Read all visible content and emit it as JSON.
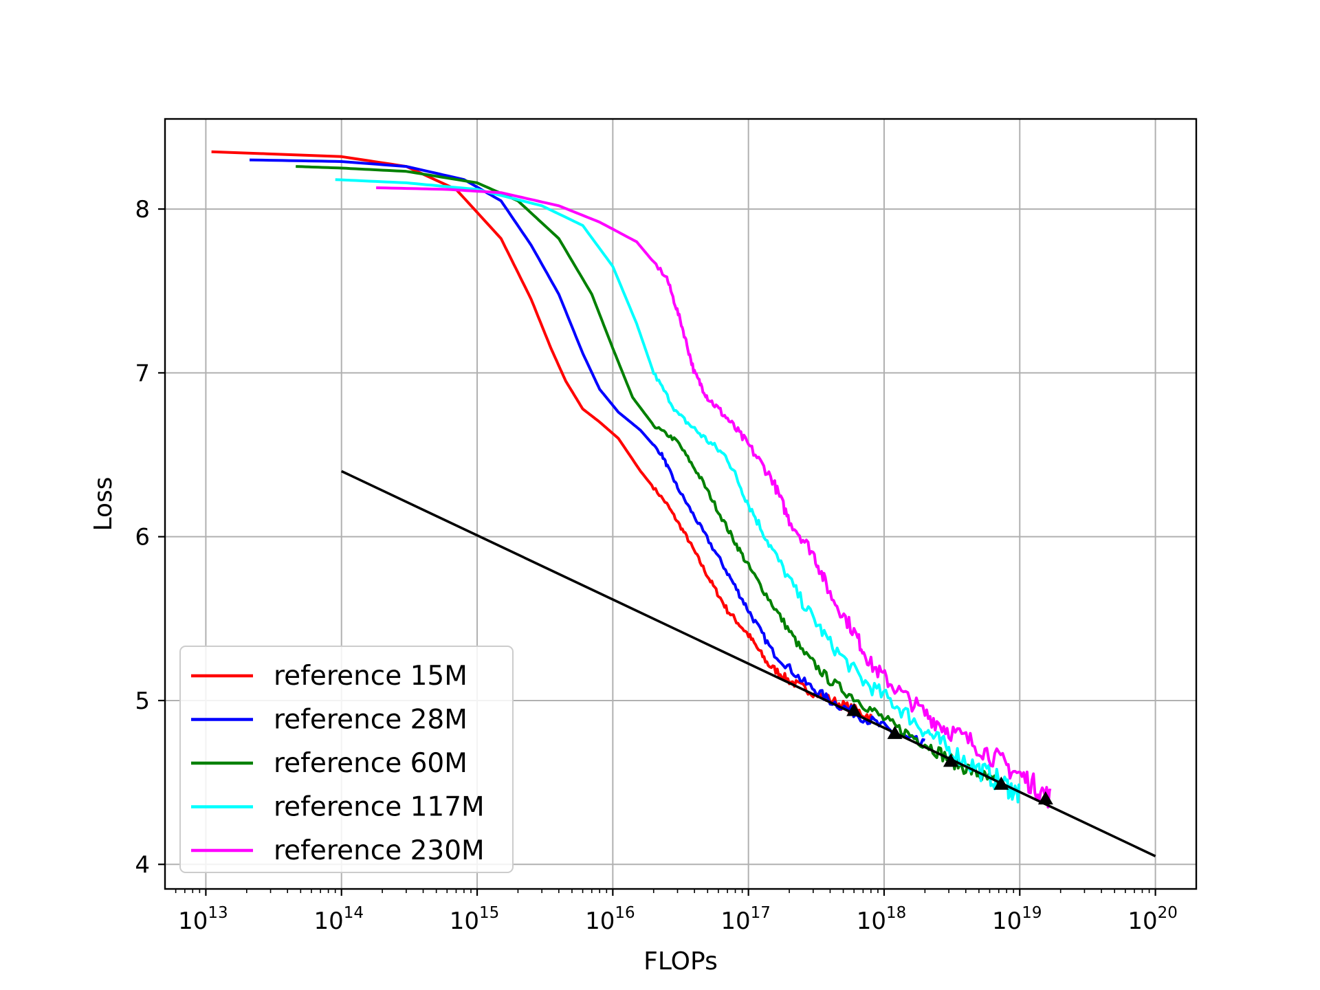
{
  "chart_data": {
    "type": "line",
    "title": "",
    "xlabel": "FLOPs",
    "ylabel": "Loss",
    "x_scale": "log",
    "xlim": [
      5000000000000.0,
      2e+20
    ],
    "ylim": [
      3.85,
      8.55
    ],
    "x_ticks": [
      {
        "value": 10000000000000.0,
        "base": "10",
        "exp": "13"
      },
      {
        "value": 100000000000000.0,
        "base": "10",
        "exp": "14"
      },
      {
        "value": 1000000000000000.0,
        "base": "10",
        "exp": "15"
      },
      {
        "value": 1e+16,
        "base": "10",
        "exp": "16"
      },
      {
        "value": 1e+17,
        "base": "10",
        "exp": "17"
      },
      {
        "value": 1e+18,
        "base": "10",
        "exp": "18"
      },
      {
        "value": 1e+19,
        "base": "10",
        "exp": "19"
      },
      {
        "value": 1e+20,
        "base": "10",
        "exp": "20"
      }
    ],
    "y_ticks": [
      {
        "value": 4,
        "label": "4"
      },
      {
        "value": 5,
        "label": "5"
      },
      {
        "value": 6,
        "label": "6"
      },
      {
        "value": 7,
        "label": "7"
      },
      {
        "value": 8,
        "label": "8"
      }
    ],
    "grid": true,
    "legend_position": "lower-left",
    "series": [
      {
        "name": "reference 15M",
        "color": "#ff0000",
        "points": [
          [
            11000000000000.0,
            8.35
          ],
          [
            100000000000000.0,
            8.32
          ],
          [
            300000000000000.0,
            8.26
          ],
          [
            700000000000000.0,
            8.12
          ],
          [
            1500000000000000.0,
            7.82
          ],
          [
            2500000000000000.0,
            7.45
          ],
          [
            3500000000000000.0,
            7.15
          ],
          [
            4500000000000000.0,
            6.95
          ],
          [
            6000000000000000.0,
            6.78
          ],
          [
            8000000000000000.0,
            6.7
          ],
          [
            1.1e+16,
            6.6
          ],
          [
            1.6e+16,
            6.4
          ],
          [
            2.5e+16,
            6.2
          ],
          [
            3.5e+16,
            6.0
          ],
          [
            5e+16,
            5.76
          ],
          [
            7e+16,
            5.55
          ],
          [
            1e+17,
            5.4
          ],
          [
            1.4e+17,
            5.22
          ],
          [
            2e+17,
            5.12
          ],
          [
            3e+17,
            5.05
          ],
          [
            5e+17,
            4.97
          ],
          [
            8e+17,
            4.9
          ]
        ]
      },
      {
        "name": "reference 28M",
        "color": "#0000ff",
        "points": [
          [
            21000000000000.0,
            8.3
          ],
          [
            100000000000000.0,
            8.29
          ],
          [
            300000000000000.0,
            8.26
          ],
          [
            800000000000000.0,
            8.18
          ],
          [
            1500000000000000.0,
            8.05
          ],
          [
            2500000000000000.0,
            7.78
          ],
          [
            4000000000000000.0,
            7.48
          ],
          [
            6000000000000000.0,
            7.12
          ],
          [
            8000000000000000.0,
            6.9
          ],
          [
            1.1e+16,
            6.76
          ],
          [
            1.6e+16,
            6.65
          ],
          [
            2.3e+16,
            6.5
          ],
          [
            3e+16,
            6.3
          ],
          [
            4.5e+16,
            6.05
          ],
          [
            7e+16,
            5.78
          ],
          [
            1e+17,
            5.55
          ],
          [
            1.5e+17,
            5.3
          ],
          [
            2.5e+17,
            5.12
          ],
          [
            4e+17,
            5.0
          ],
          [
            7e+17,
            4.9
          ],
          [
            1.2e+18,
            4.8
          ],
          [
            2e+18,
            4.72
          ]
        ]
      },
      {
        "name": "reference 60M",
        "color": "#008000",
        "points": [
          [
            46000000000000.0,
            8.26
          ],
          [
            100000000000000.0,
            8.25
          ],
          [
            300000000000000.0,
            8.23
          ],
          [
            1000000000000000.0,
            8.16
          ],
          [
            2000000000000000.0,
            8.05
          ],
          [
            4000000000000000.0,
            7.82
          ],
          [
            7000000000000000.0,
            7.48
          ],
          [
            1e+16,
            7.15
          ],
          [
            1.4e+16,
            6.85
          ],
          [
            2e+16,
            6.68
          ],
          [
            3e+16,
            6.58
          ],
          [
            4.5e+16,
            6.35
          ],
          [
            7e+16,
            6.05
          ],
          [
            1e+17,
            5.82
          ],
          [
            1.6e+17,
            5.55
          ],
          [
            2.5e+17,
            5.3
          ],
          [
            4e+17,
            5.12
          ],
          [
            7e+17,
            4.98
          ],
          [
            1.2e+18,
            4.84
          ],
          [
            2e+18,
            4.74
          ],
          [
            3.2e+18,
            4.63
          ],
          [
            5e+18,
            4.55
          ],
          [
            7e+18,
            4.48
          ]
        ]
      },
      {
        "name": "reference 117M",
        "color": "#00ffff",
        "points": [
          [
            90000000000000.0,
            8.18
          ],
          [
            300000000000000.0,
            8.16
          ],
          [
            1000000000000000.0,
            8.12
          ],
          [
            3000000000000000.0,
            8.02
          ],
          [
            6000000000000000.0,
            7.9
          ],
          [
            1e+16,
            7.65
          ],
          [
            1.5e+16,
            7.3
          ],
          [
            2e+16,
            7.0
          ],
          [
            3e+16,
            6.75
          ],
          [
            4.5e+16,
            6.62
          ],
          [
            7e+16,
            6.48
          ],
          [
            1e+17,
            6.2
          ],
          [
            1.5e+17,
            5.92
          ],
          [
            2.5e+17,
            5.6
          ],
          [
            4e+17,
            5.35
          ],
          [
            7e+17,
            5.12
          ],
          [
            1.2e+18,
            4.98
          ],
          [
            2e+18,
            4.82
          ],
          [
            3e+18,
            4.7
          ],
          [
            5e+18,
            4.58
          ],
          [
            8e+18,
            4.48
          ],
          [
            1e+19,
            4.42
          ]
        ]
      },
      {
        "name": "reference 230M",
        "color": "#ff00ff",
        "points": [
          [
            180000000000000.0,
            8.13
          ],
          [
            600000000000000.0,
            8.12
          ],
          [
            1500000000000000.0,
            8.1
          ],
          [
            4000000000000000.0,
            8.02
          ],
          [
            8000000000000000.0,
            7.92
          ],
          [
            1.5e+16,
            7.8
          ],
          [
            2.5e+16,
            7.58
          ],
          [
            3.2e+16,
            7.3
          ],
          [
            4e+16,
            7.0
          ],
          [
            5e+16,
            6.85
          ],
          [
            7e+16,
            6.72
          ],
          [
            1e+17,
            6.56
          ],
          [
            1.5e+17,
            6.35
          ],
          [
            2e+17,
            6.1
          ],
          [
            3e+17,
            5.9
          ],
          [
            4e+17,
            5.65
          ],
          [
            6e+17,
            5.42
          ],
          [
            8e+17,
            5.22
          ],
          [
            1.2e+18,
            5.08
          ],
          [
            2e+18,
            4.92
          ],
          [
            3e+18,
            4.82
          ],
          [
            5e+18,
            4.72
          ],
          [
            8e+18,
            4.6
          ],
          [
            1.2e+19,
            4.5
          ],
          [
            1.7e+19,
            4.4
          ]
        ]
      }
    ],
    "fit_line": {
      "color": "#000000",
      "points": [
        [
          100000000000000.0,
          6.4
        ],
        [
          1e+20,
          4.05
        ]
      ]
    },
    "markers": {
      "color": "#000000",
      "shape": "triangle",
      "points": [
        [
          6e+17,
          4.94
        ],
        [
          1.2e+18,
          4.8
        ],
        [
          3.1e+18,
          4.63
        ],
        [
          7.3e+18,
          4.49
        ],
        [
          1.55e+19,
          4.4
        ]
      ]
    }
  }
}
